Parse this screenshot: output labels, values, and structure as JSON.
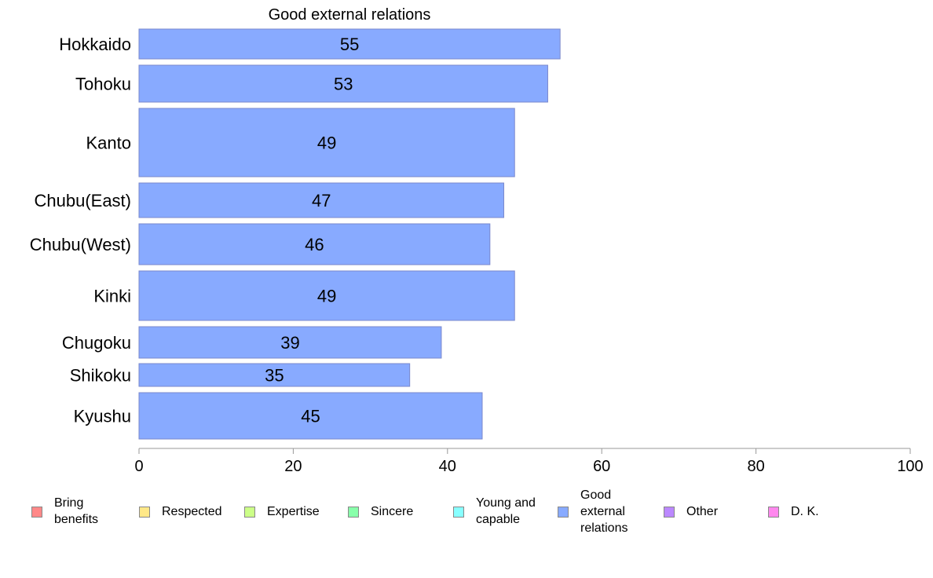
{
  "chart_data": {
    "type": "bar",
    "orientation": "horizontal",
    "title": "Good external relations",
    "categories": [
      "Hokkaido",
      "Tohoku",
      "Kanto",
      "Chubu(East)",
      "Chubu(West)",
      "Kinki",
      "Chugoku",
      "Shikoku",
      "Kyushu"
    ],
    "values": [
      54.6,
      53.0,
      48.7,
      47.3,
      45.5,
      48.7,
      39.2,
      35.1,
      44.5
    ],
    "data_labels": [
      "55",
      "53",
      "49",
      "47",
      "46",
      "49",
      "39",
      "35",
      "45"
    ],
    "xlim": [
      0,
      100
    ],
    "xticks": [
      "0",
      "20",
      "40",
      "60",
      "80",
      "100"
    ],
    "xlabel": "",
    "ylabel": "",
    "bar_color": "#88aaff",
    "legend_placement": "bottom",
    "legend": [
      {
        "label": "Bring benefits",
        "color": "#ff8888"
      },
      {
        "label": "Respected",
        "color": "#ffe888"
      },
      {
        "label": "Expertise",
        "color": "#ccff88"
      },
      {
        "label": "Sincere",
        "color": "#88ffaa"
      },
      {
        "label": "Young and capable",
        "color": "#88ffff"
      },
      {
        "label": "Good external relations",
        "color": "#88aaff"
      },
      {
        "label": "Other",
        "color": "#bb88ff"
      },
      {
        "label": "D. K.",
        "color": "#ff88ee"
      }
    ]
  }
}
